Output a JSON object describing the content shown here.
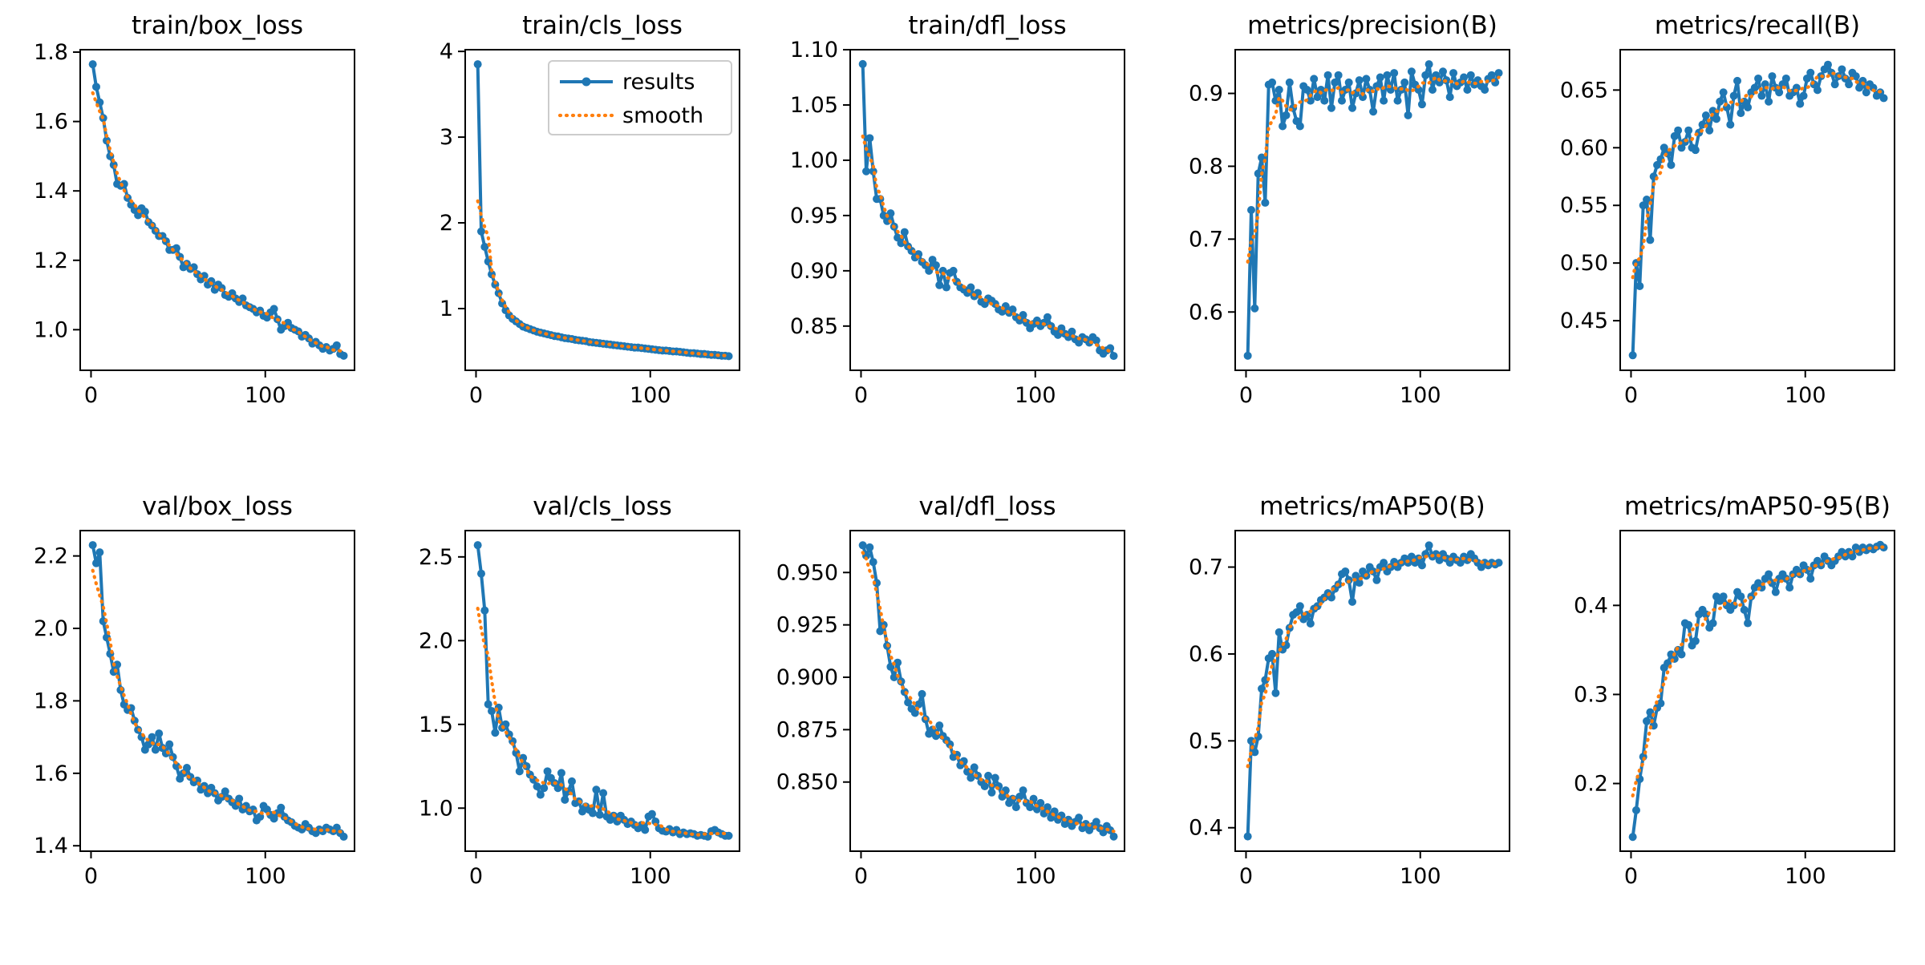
{
  "figure": {
    "background": "#ffffff",
    "text_color": "#000000",
    "legend": {
      "entries": [
        {
          "label": "results",
          "color": "#1f77b4",
          "style": "solid-with-marker"
        },
        {
          "label": "smooth",
          "color": "#ff7f0e",
          "style": "dotted"
        }
      ]
    },
    "smooth_window": 7
  },
  "x_epochs": [
    1,
    3,
    5,
    7,
    9,
    11,
    13,
    15,
    17,
    19,
    21,
    23,
    25,
    27,
    29,
    31,
    33,
    35,
    37,
    39,
    41,
    43,
    45,
    47,
    49,
    51,
    53,
    55,
    57,
    59,
    61,
    63,
    65,
    67,
    69,
    71,
    73,
    75,
    77,
    79,
    81,
    83,
    85,
    87,
    89,
    91,
    93,
    95,
    97,
    99,
    101,
    103,
    105,
    107,
    109,
    111,
    113,
    115,
    117,
    119,
    121,
    123,
    125,
    127,
    129,
    131,
    133,
    135,
    137,
    139,
    141,
    143,
    145
  ],
  "chart_data": [
    {
      "type": "line",
      "title": "train/box_loss",
      "legend": false,
      "xlim": [
        -6.2,
        151.2
      ],
      "xticks": [
        0,
        100
      ],
      "xtick_labels": [
        "0",
        "100"
      ],
      "ylim": [
        0.883,
        1.807
      ],
      "ytick_vals": [
        1.0,
        1.2,
        1.4,
        1.6,
        1.8
      ],
      "ytick_labels": [
        "1.0",
        "1.2",
        "1.4",
        "1.6",
        "1.8"
      ],
      "values": [
        1.765,
        1.7,
        1.655,
        1.61,
        1.545,
        1.5,
        1.475,
        1.42,
        1.415,
        1.42,
        1.38,
        1.36,
        1.345,
        1.33,
        1.35,
        1.34,
        1.31,
        1.3,
        1.285,
        1.27,
        1.27,
        1.255,
        1.23,
        1.23,
        1.235,
        1.21,
        1.18,
        1.19,
        1.175,
        1.18,
        1.16,
        1.145,
        1.155,
        1.13,
        1.14,
        1.115,
        1.13,
        1.12,
        1.1,
        1.095,
        1.105,
        1.09,
        1.08,
        1.09,
        1.07,
        1.065,
        1.06,
        1.05,
        1.055,
        1.04,
        1.035,
        1.05,
        1.06,
        1.03,
        1.0,
        1.01,
        1.02,
        1.005,
        1.0,
        0.995,
        0.98,
        0.985,
        0.975,
        0.96,
        0.965,
        0.955,
        0.945,
        0.95,
        0.94,
        0.945,
        0.955,
        0.93,
        0.925
      ]
    },
    {
      "type": "line",
      "title": "train/cls_loss",
      "legend": true,
      "xlim": [
        -6.2,
        151.2
      ],
      "xticks": [
        0,
        100
      ],
      "xtick_labels": [
        "0",
        "100"
      ],
      "ylim": [
        0.28,
        4.02
      ],
      "ytick_vals": [
        1,
        2,
        3,
        4
      ],
      "ytick_labels": [
        "1",
        "2",
        "3",
        "4"
      ],
      "values": [
        3.85,
        1.9,
        1.72,
        1.55,
        1.4,
        1.28,
        1.18,
        1.06,
        0.98,
        0.92,
        0.88,
        0.85,
        0.82,
        0.79,
        0.775,
        0.76,
        0.745,
        0.73,
        0.72,
        0.71,
        0.7,
        0.69,
        0.68,
        0.675,
        0.665,
        0.655,
        0.65,
        0.645,
        0.635,
        0.63,
        0.625,
        0.62,
        0.61,
        0.605,
        0.6,
        0.595,
        0.59,
        0.585,
        0.58,
        0.575,
        0.57,
        0.565,
        0.56,
        0.555,
        0.55,
        0.545,
        0.545,
        0.54,
        0.535,
        0.53,
        0.525,
        0.52,
        0.515,
        0.51,
        0.51,
        0.505,
        0.5,
        0.5,
        0.495,
        0.49,
        0.485,
        0.48,
        0.48,
        0.475,
        0.47,
        0.47,
        0.465,
        0.46,
        0.46,
        0.455,
        0.45,
        0.45,
        0.445
      ]
    },
    {
      "type": "line",
      "title": "train/dfl_loss",
      "legend": false,
      "xlim": [
        -6.2,
        151.2
      ],
      "xticks": [
        0,
        100
      ],
      "xtick_labels": [
        "0",
        "100"
      ],
      "ylim": [
        0.81,
        1.1
      ],
      "ytick_vals": [
        0.85,
        0.9,
        0.95,
        1.0,
        1.05,
        1.1
      ],
      "ytick_labels": [
        "0.85",
        "0.90",
        "0.95",
        "1.00",
        "1.05",
        "1.10"
      ],
      "values": [
        1.087,
        0.99,
        1.02,
        0.99,
        0.965,
        0.965,
        0.95,
        0.945,
        0.952,
        0.94,
        0.93,
        0.925,
        0.935,
        0.922,
        0.918,
        0.912,
        0.915,
        0.908,
        0.905,
        0.9,
        0.91,
        0.905,
        0.887,
        0.9,
        0.885,
        0.898,
        0.9,
        0.89,
        0.885,
        0.883,
        0.88,
        0.885,
        0.877,
        0.88,
        0.872,
        0.87,
        0.875,
        0.873,
        0.87,
        0.865,
        0.863,
        0.868,
        0.862,
        0.865,
        0.858,
        0.855,
        0.86,
        0.853,
        0.848,
        0.852,
        0.855,
        0.85,
        0.853,
        0.858,
        0.85,
        0.845,
        0.842,
        0.848,
        0.843,
        0.84,
        0.845,
        0.838,
        0.835,
        0.84,
        0.838,
        0.835,
        0.84,
        0.837,
        0.828,
        0.825,
        0.828,
        0.83,
        0.823
      ]
    },
    {
      "type": "line",
      "title": "metrics/precision(B)",
      "legend": false,
      "xlim": [
        -6.2,
        151.2
      ],
      "xticks": [
        0,
        100
      ],
      "xtick_labels": [
        "0",
        "100"
      ],
      "ylim": [
        0.52,
        0.96
      ],
      "ytick_vals": [
        0.6,
        0.7,
        0.8,
        0.9
      ],
      "ytick_labels": [
        "0.6",
        "0.7",
        "0.8",
        "0.9"
      ],
      "values": [
        0.54,
        0.74,
        0.605,
        0.79,
        0.812,
        0.75,
        0.912,
        0.915,
        0.89,
        0.905,
        0.855,
        0.87,
        0.915,
        0.88,
        0.862,
        0.855,
        0.91,
        0.905,
        0.89,
        0.92,
        0.895,
        0.905,
        0.89,
        0.925,
        0.88,
        0.915,
        0.925,
        0.89,
        0.905,
        0.915,
        0.88,
        0.9,
        0.918,
        0.895,
        0.92,
        0.905,
        0.875,
        0.91,
        0.922,
        0.89,
        0.925,
        0.905,
        0.928,
        0.89,
        0.905,
        0.915,
        0.87,
        0.93,
        0.912,
        0.905,
        0.885,
        0.925,
        0.94,
        0.905,
        0.925,
        0.915,
        0.93,
        0.918,
        0.895,
        0.928,
        0.91,
        0.915,
        0.922,
        0.905,
        0.925,
        0.912,
        0.918,
        0.91,
        0.905,
        0.92,
        0.925,
        0.915,
        0.928
      ]
    },
    {
      "type": "line",
      "title": "metrics/recall(B)",
      "legend": false,
      "xlim": [
        -6.2,
        151.2
      ],
      "xticks": [
        0,
        100
      ],
      "xtick_labels": [
        "0",
        "100"
      ],
      "ylim": [
        0.407,
        0.685
      ],
      "ytick_vals": [
        0.45,
        0.5,
        0.55,
        0.6,
        0.65
      ],
      "ytick_labels": [
        "0.45",
        "0.50",
        "0.55",
        "0.60",
        "0.65"
      ],
      "values": [
        0.42,
        0.5,
        0.48,
        0.55,
        0.555,
        0.52,
        0.575,
        0.585,
        0.59,
        0.6,
        0.595,
        0.585,
        0.61,
        0.615,
        0.6,
        0.605,
        0.615,
        0.6,
        0.598,
        0.613,
        0.62,
        0.628,
        0.615,
        0.632,
        0.625,
        0.64,
        0.648,
        0.635,
        0.62,
        0.645,
        0.658,
        0.63,
        0.64,
        0.635,
        0.648,
        0.652,
        0.66,
        0.645,
        0.655,
        0.64,
        0.662,
        0.652,
        0.648,
        0.655,
        0.66,
        0.645,
        0.648,
        0.652,
        0.638,
        0.645,
        0.66,
        0.665,
        0.655,
        0.65,
        0.662,
        0.668,
        0.672,
        0.665,
        0.655,
        0.662,
        0.668,
        0.66,
        0.655,
        0.665,
        0.662,
        0.652,
        0.658,
        0.648,
        0.655,
        0.652,
        0.645,
        0.648,
        0.643
      ]
    },
    {
      "type": "line",
      "title": "val/box_loss",
      "legend": false,
      "xlim": [
        -6.2,
        151.2
      ],
      "xticks": [
        0,
        100
      ],
      "xtick_labels": [
        "0",
        "100"
      ],
      "ylim": [
        1.385,
        2.27
      ],
      "ytick_vals": [
        1.4,
        1.6,
        1.8,
        2.0,
        2.2
      ],
      "ytick_labels": [
        "1.4",
        "1.6",
        "1.8",
        "2.0",
        "2.2"
      ],
      "values": [
        2.23,
        2.18,
        2.21,
        2.02,
        1.975,
        1.93,
        1.88,
        1.9,
        1.83,
        1.79,
        1.775,
        1.78,
        1.745,
        1.72,
        1.7,
        1.665,
        1.68,
        1.7,
        1.665,
        1.71,
        1.67,
        1.655,
        1.68,
        1.645,
        1.62,
        1.585,
        1.6,
        1.615,
        1.59,
        1.575,
        1.58,
        1.555,
        1.565,
        1.545,
        1.56,
        1.545,
        1.525,
        1.535,
        1.55,
        1.53,
        1.52,
        1.51,
        1.53,
        1.5,
        1.51,
        1.495,
        1.5,
        1.47,
        1.48,
        1.51,
        1.5,
        1.485,
        1.475,
        1.49,
        1.505,
        1.48,
        1.47,
        1.465,
        1.455,
        1.45,
        1.445,
        1.46,
        1.45,
        1.44,
        1.435,
        1.445,
        1.44,
        1.45,
        1.445,
        1.44,
        1.45,
        1.435,
        1.425
      ]
    },
    {
      "type": "line",
      "title": "val/cls_loss",
      "legend": false,
      "xlim": [
        -6.2,
        151.2
      ],
      "xticks": [
        0,
        100
      ],
      "xtick_labels": [
        "0",
        "100"
      ],
      "ylim": [
        0.743,
        2.657
      ],
      "ytick_vals": [
        1.0,
        1.5,
        2.0,
        2.5
      ],
      "ytick_labels": [
        "1.0",
        "1.5",
        "2.0",
        "2.5"
      ],
      "values": [
        2.57,
        2.4,
        2.18,
        1.62,
        1.58,
        1.45,
        1.6,
        1.48,
        1.5,
        1.44,
        1.4,
        1.33,
        1.22,
        1.3,
        1.25,
        1.2,
        1.17,
        1.13,
        1.08,
        1.12,
        1.22,
        1.18,
        1.15,
        1.12,
        1.21,
        1.05,
        1.1,
        1.16,
        1.03,
        1.04,
        0.98,
        1.01,
        0.99,
        0.97,
        1.11,
        0.96,
        1.09,
        0.95,
        0.93,
        0.955,
        0.92,
        0.955,
        0.93,
        0.905,
        0.92,
        0.9,
        0.88,
        0.9,
        0.87,
        0.95,
        0.965,
        0.92,
        0.88,
        0.865,
        0.86,
        0.875,
        0.855,
        0.87,
        0.845,
        0.855,
        0.845,
        0.85,
        0.845,
        0.835,
        0.84,
        0.835,
        0.83,
        0.862,
        0.87,
        0.855,
        0.845,
        0.835,
        0.835
      ]
    },
    {
      "type": "line",
      "title": "val/dfl_loss",
      "legend": false,
      "xlim": [
        -6.2,
        151.2
      ],
      "xticks": [
        0,
        100
      ],
      "xtick_labels": [
        "0",
        "100"
      ],
      "ylim": [
        0.817,
        0.97
      ],
      "ytick_vals": [
        0.85,
        0.875,
        0.9,
        0.925,
        0.95
      ],
      "ytick_labels": [
        "0.850",
        "0.875",
        "0.900",
        "0.925",
        "0.950"
      ],
      "values": [
        0.963,
        0.958,
        0.962,
        0.955,
        0.945,
        0.922,
        0.925,
        0.915,
        0.905,
        0.9,
        0.907,
        0.898,
        0.893,
        0.888,
        0.885,
        0.883,
        0.887,
        0.892,
        0.88,
        0.873,
        0.875,
        0.872,
        0.877,
        0.872,
        0.87,
        0.868,
        0.862,
        0.863,
        0.858,
        0.86,
        0.855,
        0.852,
        0.857,
        0.853,
        0.85,
        0.848,
        0.853,
        0.845,
        0.852,
        0.848,
        0.843,
        0.846,
        0.84,
        0.842,
        0.838,
        0.843,
        0.846,
        0.84,
        0.838,
        0.842,
        0.837,
        0.84,
        0.835,
        0.838,
        0.833,
        0.836,
        0.832,
        0.834,
        0.83,
        0.832,
        0.829,
        0.831,
        0.833,
        0.828,
        0.83,
        0.827,
        0.829,
        0.831,
        0.828,
        0.826,
        0.829,
        0.827,
        0.824
      ]
    },
    {
      "type": "line",
      "title": "metrics/mAP50(B)",
      "legend": false,
      "xlim": [
        -6.2,
        151.2
      ],
      "xticks": [
        0,
        100
      ],
      "xtick_labels": [
        "0",
        "100"
      ],
      "ylim": [
        0.373,
        0.742
      ],
      "ytick_vals": [
        0.4,
        0.5,
        0.6,
        0.7
      ],
      "ytick_labels": [
        "0.4",
        "0.5",
        "0.6",
        "0.7"
      ],
      "values": [
        0.39,
        0.5,
        0.487,
        0.505,
        0.56,
        0.57,
        0.595,
        0.6,
        0.555,
        0.625,
        0.605,
        0.61,
        0.63,
        0.645,
        0.648,
        0.655,
        0.64,
        0.645,
        0.635,
        0.652,
        0.655,
        0.662,
        0.665,
        0.67,
        0.665,
        0.675,
        0.68,
        0.692,
        0.695,
        0.685,
        0.66,
        0.69,
        0.682,
        0.695,
        0.69,
        0.7,
        0.695,
        0.685,
        0.7,
        0.705,
        0.695,
        0.7,
        0.706,
        0.7,
        0.705,
        0.71,
        0.705,
        0.712,
        0.705,
        0.71,
        0.702,
        0.715,
        0.725,
        0.712,
        0.715,
        0.708,
        0.715,
        0.71,
        0.705,
        0.712,
        0.708,
        0.705,
        0.712,
        0.708,
        0.715,
        0.71,
        0.705,
        0.7,
        0.705,
        0.702,
        0.705,
        0.703,
        0.705
      ]
    },
    {
      "type": "line",
      "title": "metrics/mAP50-95(B)",
      "legend": false,
      "xlim": [
        -6.2,
        151.2
      ],
      "xticks": [
        0,
        100
      ],
      "xtick_labels": [
        "0",
        "100"
      ],
      "ylim": [
        0.124,
        0.484
      ],
      "ytick_vals": [
        0.2,
        0.3,
        0.4
      ],
      "ytick_labels": [
        "0.2",
        "0.3",
        "0.4"
      ],
      "values": [
        0.14,
        0.17,
        0.205,
        0.23,
        0.27,
        0.28,
        0.265,
        0.285,
        0.29,
        0.33,
        0.335,
        0.345,
        0.34,
        0.35,
        0.345,
        0.38,
        0.378,
        0.355,
        0.36,
        0.39,
        0.395,
        0.39,
        0.375,
        0.38,
        0.41,
        0.405,
        0.41,
        0.4,
        0.395,
        0.4,
        0.415,
        0.41,
        0.395,
        0.38,
        0.41,
        0.42,
        0.425,
        0.42,
        0.43,
        0.435,
        0.425,
        0.415,
        0.43,
        0.435,
        0.43,
        0.42,
        0.435,
        0.44,
        0.435,
        0.445,
        0.44,
        0.43,
        0.445,
        0.45,
        0.445,
        0.455,
        0.45,
        0.445,
        0.45,
        0.455,
        0.46,
        0.455,
        0.46,
        0.455,
        0.465,
        0.46,
        0.465,
        0.462,
        0.465,
        0.463,
        0.466,
        0.468,
        0.465
      ]
    }
  ]
}
